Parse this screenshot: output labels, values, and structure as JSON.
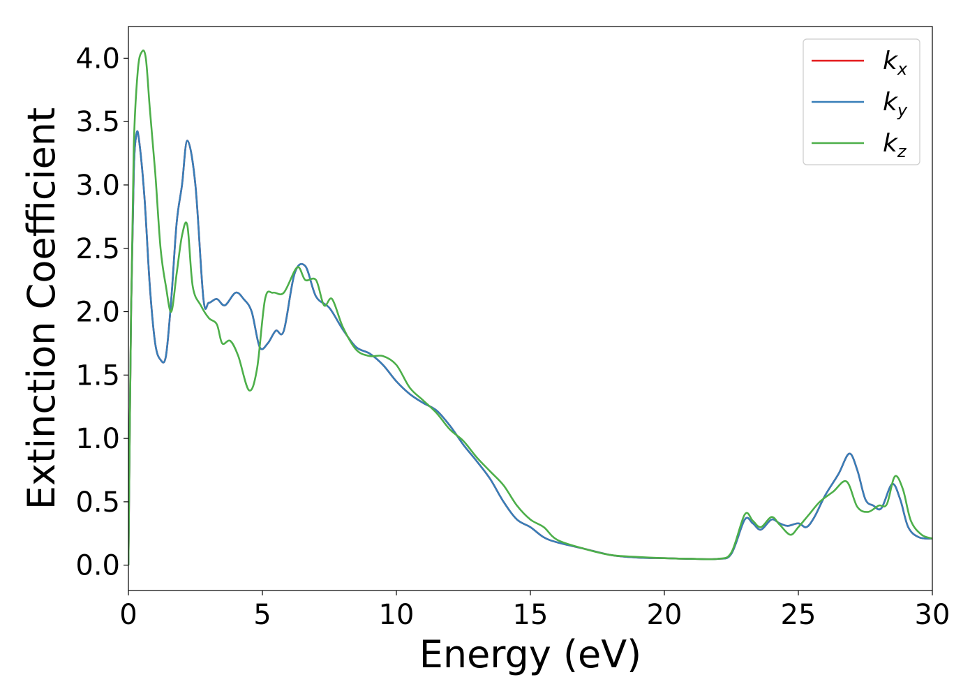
{
  "chart_data": {
    "type": "line",
    "title": "",
    "xlabel": "Energy (eV)",
    "ylabel": "Extinction Coefficient",
    "xlim": [
      0,
      30
    ],
    "ylim": [
      -0.2,
      4.25
    ],
    "xticks": [
      0,
      5,
      10,
      15,
      20,
      25,
      30
    ],
    "xtick_labels": [
      "0",
      "5",
      "10",
      "15",
      "20",
      "25",
      "30"
    ],
    "yticks": [
      0.0,
      0.5,
      1.0,
      1.5,
      2.0,
      2.5,
      3.0,
      3.5,
      4.0
    ],
    "ytick_labels": [
      "0.0",
      "0.5",
      "1.0",
      "1.5",
      "2.0",
      "2.5",
      "3.0",
      "3.5",
      "4.0"
    ],
    "grid": false,
    "legend_position": "top-right",
    "series": [
      {
        "name": "k_x",
        "label_main": "k",
        "label_sub": "x",
        "color": "#e41a1c",
        "x": [
          0,
          0.1,
          0.2,
          0.3,
          0.4,
          0.6,
          0.8,
          1.0,
          1.2,
          1.4,
          1.6,
          1.8,
          2.0,
          2.2,
          2.5,
          2.8,
          3.0,
          3.3,
          3.6,
          4.0,
          4.3,
          4.6,
          4.9,
          5.2,
          5.5,
          5.8,
          6.2,
          6.6,
          7.0,
          7.5,
          8.0,
          8.5,
          9.0,
          9.5,
          10.0,
          10.5,
          11.0,
          11.5,
          12.0,
          12.5,
          13.0,
          13.5,
          14.0,
          14.5,
          15.0,
          15.5,
          16.0,
          17.0,
          18.0,
          19.0,
          20.0,
          21.0,
          22.0,
          22.5,
          23.0,
          23.3,
          23.6,
          24.0,
          24.3,
          24.6,
          25.0,
          25.3,
          25.6,
          26.0,
          26.5,
          26.9,
          27.2,
          27.5,
          27.8,
          28.1,
          28.5,
          28.8,
          29.1,
          29.5,
          30.0
        ],
        "y": [
          0.0,
          2.0,
          3.1,
          3.4,
          3.35,
          2.9,
          2.2,
          1.75,
          1.62,
          1.65,
          2.1,
          2.7,
          3.0,
          3.35,
          3.0,
          2.1,
          2.07,
          2.1,
          2.05,
          2.15,
          2.1,
          2.0,
          1.72,
          1.75,
          1.85,
          1.85,
          2.3,
          2.36,
          2.12,
          2.03,
          1.86,
          1.72,
          1.67,
          1.58,
          1.45,
          1.35,
          1.28,
          1.22,
          1.1,
          0.95,
          0.82,
          0.68,
          0.5,
          0.36,
          0.3,
          0.22,
          0.18,
          0.13,
          0.08,
          0.06,
          0.055,
          0.05,
          0.05,
          0.09,
          0.36,
          0.33,
          0.28,
          0.36,
          0.33,
          0.31,
          0.33,
          0.3,
          0.38,
          0.55,
          0.72,
          0.88,
          0.75,
          0.52,
          0.47,
          0.45,
          0.64,
          0.52,
          0.3,
          0.22,
          0.21
        ]
      },
      {
        "name": "k_y",
        "label_main": "k",
        "label_sub": "y",
        "color": "#377eb8",
        "x": [
          0,
          0.1,
          0.2,
          0.3,
          0.4,
          0.6,
          0.8,
          1.0,
          1.2,
          1.4,
          1.6,
          1.8,
          2.0,
          2.2,
          2.5,
          2.8,
          3.0,
          3.3,
          3.6,
          4.0,
          4.3,
          4.6,
          4.9,
          5.2,
          5.5,
          5.8,
          6.2,
          6.6,
          7.0,
          7.5,
          8.0,
          8.5,
          9.0,
          9.5,
          10.0,
          10.5,
          11.0,
          11.5,
          12.0,
          12.5,
          13.0,
          13.5,
          14.0,
          14.5,
          15.0,
          15.5,
          16.0,
          17.0,
          18.0,
          19.0,
          20.0,
          21.0,
          22.0,
          22.5,
          23.0,
          23.3,
          23.6,
          24.0,
          24.3,
          24.6,
          25.0,
          25.3,
          25.6,
          26.0,
          26.5,
          26.9,
          27.2,
          27.5,
          27.8,
          28.1,
          28.5,
          28.8,
          29.1,
          29.5,
          30.0
        ],
        "y": [
          0.0,
          2.0,
          3.1,
          3.4,
          3.35,
          2.9,
          2.2,
          1.75,
          1.62,
          1.65,
          2.1,
          2.7,
          3.0,
          3.35,
          3.0,
          2.1,
          2.07,
          2.1,
          2.05,
          2.15,
          2.1,
          2.0,
          1.72,
          1.75,
          1.85,
          1.85,
          2.3,
          2.36,
          2.12,
          2.03,
          1.86,
          1.72,
          1.67,
          1.58,
          1.45,
          1.35,
          1.28,
          1.22,
          1.1,
          0.95,
          0.82,
          0.68,
          0.5,
          0.36,
          0.3,
          0.22,
          0.18,
          0.13,
          0.08,
          0.06,
          0.055,
          0.05,
          0.05,
          0.09,
          0.36,
          0.33,
          0.28,
          0.36,
          0.33,
          0.31,
          0.33,
          0.3,
          0.38,
          0.55,
          0.72,
          0.88,
          0.75,
          0.52,
          0.47,
          0.45,
          0.64,
          0.52,
          0.3,
          0.22,
          0.21
        ]
      },
      {
        "name": "k_z",
        "label_main": "k",
        "label_sub": "z",
        "color": "#4daf4a",
        "x": [
          0,
          0.1,
          0.2,
          0.35,
          0.5,
          0.65,
          0.8,
          1.0,
          1.2,
          1.4,
          1.6,
          1.8,
          2.0,
          2.2,
          2.4,
          2.7,
          3.0,
          3.3,
          3.5,
          3.8,
          4.1,
          4.5,
          4.8,
          5.1,
          5.4,
          5.8,
          6.3,
          6.6,
          7.0,
          7.3,
          7.6,
          8.0,
          8.5,
          9.0,
          9.5,
          10.0,
          10.5,
          11.0,
          11.5,
          12.0,
          12.5,
          13.0,
          13.5,
          14.0,
          14.5,
          15.0,
          15.5,
          16.0,
          17.0,
          18.0,
          19.0,
          20.0,
          21.0,
          22.0,
          22.5,
          23.0,
          23.3,
          23.6,
          24.0,
          24.3,
          24.7,
          25.0,
          25.4,
          25.8,
          26.3,
          26.8,
          27.2,
          27.6,
          28.0,
          28.3,
          28.6,
          28.9,
          29.2,
          29.6,
          30.0
        ],
        "y": [
          0.0,
          2.0,
          3.3,
          3.9,
          4.05,
          4.0,
          3.6,
          3.1,
          2.5,
          2.2,
          2.0,
          2.3,
          2.6,
          2.68,
          2.2,
          2.05,
          1.95,
          1.9,
          1.75,
          1.77,
          1.65,
          1.38,
          1.55,
          2.1,
          2.15,
          2.15,
          2.35,
          2.25,
          2.25,
          2.05,
          2.1,
          1.88,
          1.7,
          1.65,
          1.65,
          1.58,
          1.4,
          1.3,
          1.2,
          1.07,
          0.98,
          0.85,
          0.74,
          0.63,
          0.47,
          0.36,
          0.3,
          0.2,
          0.13,
          0.08,
          0.065,
          0.055,
          0.05,
          0.05,
          0.1,
          0.4,
          0.35,
          0.3,
          0.38,
          0.32,
          0.24,
          0.3,
          0.4,
          0.5,
          0.58,
          0.66,
          0.46,
          0.42,
          0.47,
          0.48,
          0.7,
          0.6,
          0.35,
          0.24,
          0.21
        ]
      }
    ]
  }
}
